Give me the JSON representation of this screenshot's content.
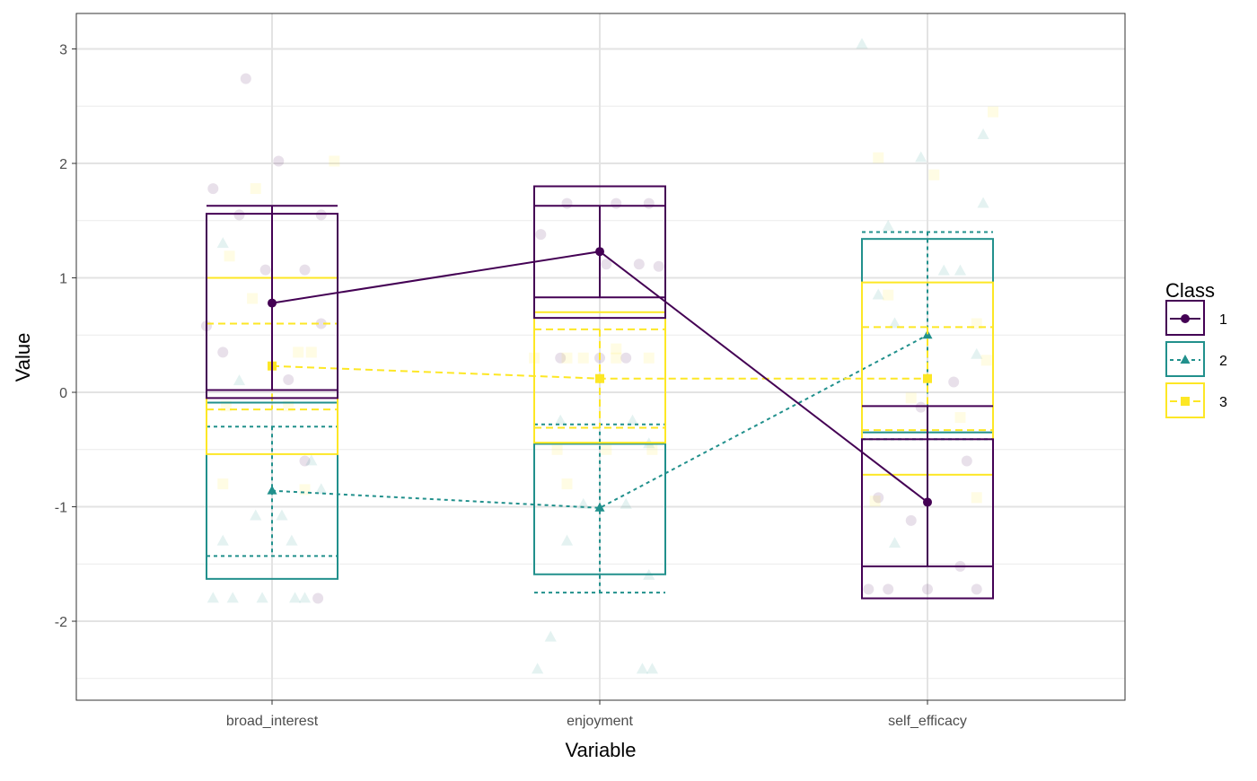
{
  "chart_data": {
    "type": "box-errorbar-line",
    "xlabel": "Variable",
    "ylabel": "Value",
    "ylim": [
      -2.69,
      3.31
    ],
    "yticks": [
      -2,
      -1,
      0,
      1,
      2,
      3
    ],
    "ytick_labels": [
      "-2",
      "-1",
      "0",
      "1",
      "2",
      "3"
    ],
    "grid": true,
    "categories": [
      "broad_interest",
      "enjoyment",
      "self_efficacy"
    ],
    "legend": {
      "title": "Class",
      "position": "right",
      "entries": [
        "1",
        "2",
        "3"
      ]
    },
    "series": [
      {
        "name": "1",
        "color": "#440154",
        "linestyle": "solid",
        "marker": "circle",
        "means": [
          0.78,
          1.23,
          -0.96
        ],
        "box_low": [
          -0.05,
          0.65,
          -1.8
        ],
        "box_high": [
          1.56,
          1.8,
          -0.41
        ],
        "err_low": [
          0.02,
          0.83,
          -1.52
        ],
        "err_high": [
          1.63,
          1.63,
          -0.12
        ],
        "points": [
          [
            [
              -0.08,
              2.74
            ],
            [
              -0.18,
              1.78
            ],
            [
              0.02,
              2.02
            ],
            [
              -0.1,
              1.55
            ],
            [
              0.15,
              1.55
            ],
            [
              -0.02,
              1.07
            ],
            [
              0.1,
              1.07
            ],
            [
              0.15,
              0.6
            ],
            [
              -0.2,
              0.58
            ],
            [
              -0.15,
              0.35
            ],
            [
              0.05,
              0.11
            ],
            [
              0.1,
              -0.6
            ],
            [
              0.14,
              -1.8
            ]
          ],
          [
            [
              -0.1,
              1.65
            ],
            [
              0.05,
              1.65
            ],
            [
              0.15,
              1.65
            ],
            [
              -0.18,
              1.38
            ],
            [
              0.02,
              1.12
            ],
            [
              0.18,
              1.1
            ],
            [
              0.12,
              1.12
            ],
            [
              -0.12,
              0.3
            ],
            [
              0.0,
              0.3
            ],
            [
              0.08,
              0.3
            ]
          ],
          [
            [
              -0.18,
              -1.72
            ],
            [
              -0.12,
              -1.72
            ],
            [
              0.0,
              -1.72
            ],
            [
              0.15,
              -1.72
            ],
            [
              -0.05,
              -1.12
            ],
            [
              0.1,
              -1.52
            ],
            [
              0.08,
              0.09
            ],
            [
              -0.15,
              -0.92
            ],
            [
              0.12,
              -0.6
            ],
            [
              -0.02,
              -0.13
            ]
          ]
        ]
      },
      {
        "name": "2",
        "color": "#21908C",
        "linestyle": "dotted",
        "marker": "triangle",
        "means": [
          -0.86,
          -1.01,
          0.5
        ],
        "box_low": [
          -1.63,
          -1.59,
          -0.35
        ],
        "box_high": [
          -0.09,
          -0.45,
          1.34
        ],
        "err_low": [
          -1.43,
          -1.75,
          -0.41
        ],
        "err_high": [
          -0.3,
          -0.28,
          1.4
        ],
        "points": [
          [
            [
              -0.18,
              -1.8
            ],
            [
              -0.12,
              -1.8
            ],
            [
              -0.03,
              -1.8
            ],
            [
              0.07,
              -1.8
            ],
            [
              0.1,
              -1.8
            ],
            [
              -0.15,
              -1.3
            ],
            [
              0.06,
              -1.3
            ],
            [
              -0.05,
              -1.08
            ],
            [
              0.03,
              -1.08
            ],
            [
              0.15,
              -0.85
            ],
            [
              -0.15,
              1.3
            ],
            [
              -0.1,
              0.1
            ],
            [
              0.12,
              -0.6
            ]
          ],
          [
            [
              -0.19,
              -2.42
            ],
            [
              -0.15,
              -2.14
            ],
            [
              0.13,
              -2.42
            ],
            [
              0.16,
              -2.42
            ],
            [
              -0.1,
              -1.3
            ],
            [
              0.15,
              -1.6
            ],
            [
              -0.05,
              -0.98
            ],
            [
              0.08,
              -0.98
            ],
            [
              0.15,
              -0.45
            ],
            [
              -0.12,
              -0.25
            ],
            [
              0.1,
              -0.25
            ]
          ],
          [
            [
              -0.2,
              3.04
            ],
            [
              0.17,
              2.25
            ],
            [
              -0.02,
              2.05
            ],
            [
              0.17,
              1.65
            ],
            [
              -0.12,
              1.45
            ],
            [
              0.05,
              1.06
            ],
            [
              0.1,
              1.06
            ],
            [
              -0.15,
              0.85
            ],
            [
              -0.1,
              0.6
            ],
            [
              0.15,
              0.33
            ],
            [
              -0.1,
              -1.32
            ]
          ]
        ]
      },
      {
        "name": "3",
        "color": "#FDE725",
        "linestyle": "dashed",
        "marker": "square",
        "means": [
          0.23,
          0.12,
          0.12
        ],
        "box_low": [
          -0.54,
          -0.44,
          -0.72
        ],
        "box_high": [
          1.0,
          0.7,
          0.96
        ],
        "err_low": [
          -0.15,
          -0.31,
          -0.33
        ],
        "err_high": [
          0.6,
          0.55,
          0.57
        ],
        "points": [
          [
            [
              -0.05,
              1.78
            ],
            [
              0.19,
              2.02
            ],
            [
              -0.13,
              1.19
            ],
            [
              -0.06,
              0.82
            ],
            [
              0.08,
              0.35
            ],
            [
              0.12,
              0.35
            ],
            [
              -0.14,
              -0.12
            ],
            [
              0.05,
              -0.12
            ],
            [
              -0.15,
              -0.8
            ],
            [
              0.1,
              -0.85
            ]
          ],
          [
            [
              -0.2,
              0.3
            ],
            [
              -0.1,
              0.3
            ],
            [
              -0.05,
              0.3
            ],
            [
              0.05,
              0.3
            ],
            [
              0.15,
              0.3
            ],
            [
              0.05,
              0.38
            ],
            [
              -0.13,
              -0.5
            ],
            [
              0.02,
              -0.5
            ],
            [
              0.16,
              -0.5
            ],
            [
              -0.1,
              -0.8
            ]
          ],
          [
            [
              -0.15,
              2.05
            ],
            [
              0.2,
              2.45
            ],
            [
              0.02,
              1.9
            ],
            [
              -0.12,
              0.85
            ],
            [
              0.15,
              0.6
            ],
            [
              0.18,
              0.28
            ],
            [
              -0.05,
              -0.05
            ],
            [
              0.1,
              -0.22
            ],
            [
              -0.16,
              -0.95
            ],
            [
              0.15,
              -0.92
            ]
          ]
        ]
      }
    ]
  }
}
